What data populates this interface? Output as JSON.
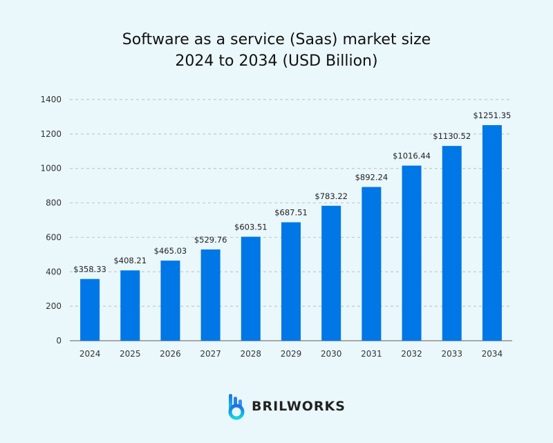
{
  "chart_data": {
    "type": "bar",
    "title": [
      "Software as a service (Saas) market size",
      "2024 to 2034 (USD Billion)"
    ],
    "categories": [
      "2024",
      "2025",
      "2026",
      "2027",
      "2028",
      "2029",
      "2030",
      "2031",
      "2032",
      "2033",
      "2034"
    ],
    "values": [
      358.33,
      408.21,
      465.03,
      529.76,
      603.51,
      687.51,
      783.22,
      892.24,
      1016.44,
      1130.52,
      1251.35
    ],
    "data_labels": [
      "$358.33",
      "$408.21",
      "$465.03",
      "$529.76",
      "$603.51",
      "$687.51",
      "$783.22",
      "$892.24",
      "$1016.44",
      "$1130.52",
      "$1251.35"
    ],
    "xlabel": "",
    "ylabel": "",
    "ylim": [
      0,
      1400
    ],
    "yticks": [
      0,
      200,
      400,
      600,
      800,
      1000,
      1200,
      1400
    ],
    "grid": true,
    "bar_color": "#0077e6",
    "background": "#eaf7fb"
  },
  "brand": {
    "name": "BRILWORKS",
    "icon": "brilworks-hand-logo"
  }
}
